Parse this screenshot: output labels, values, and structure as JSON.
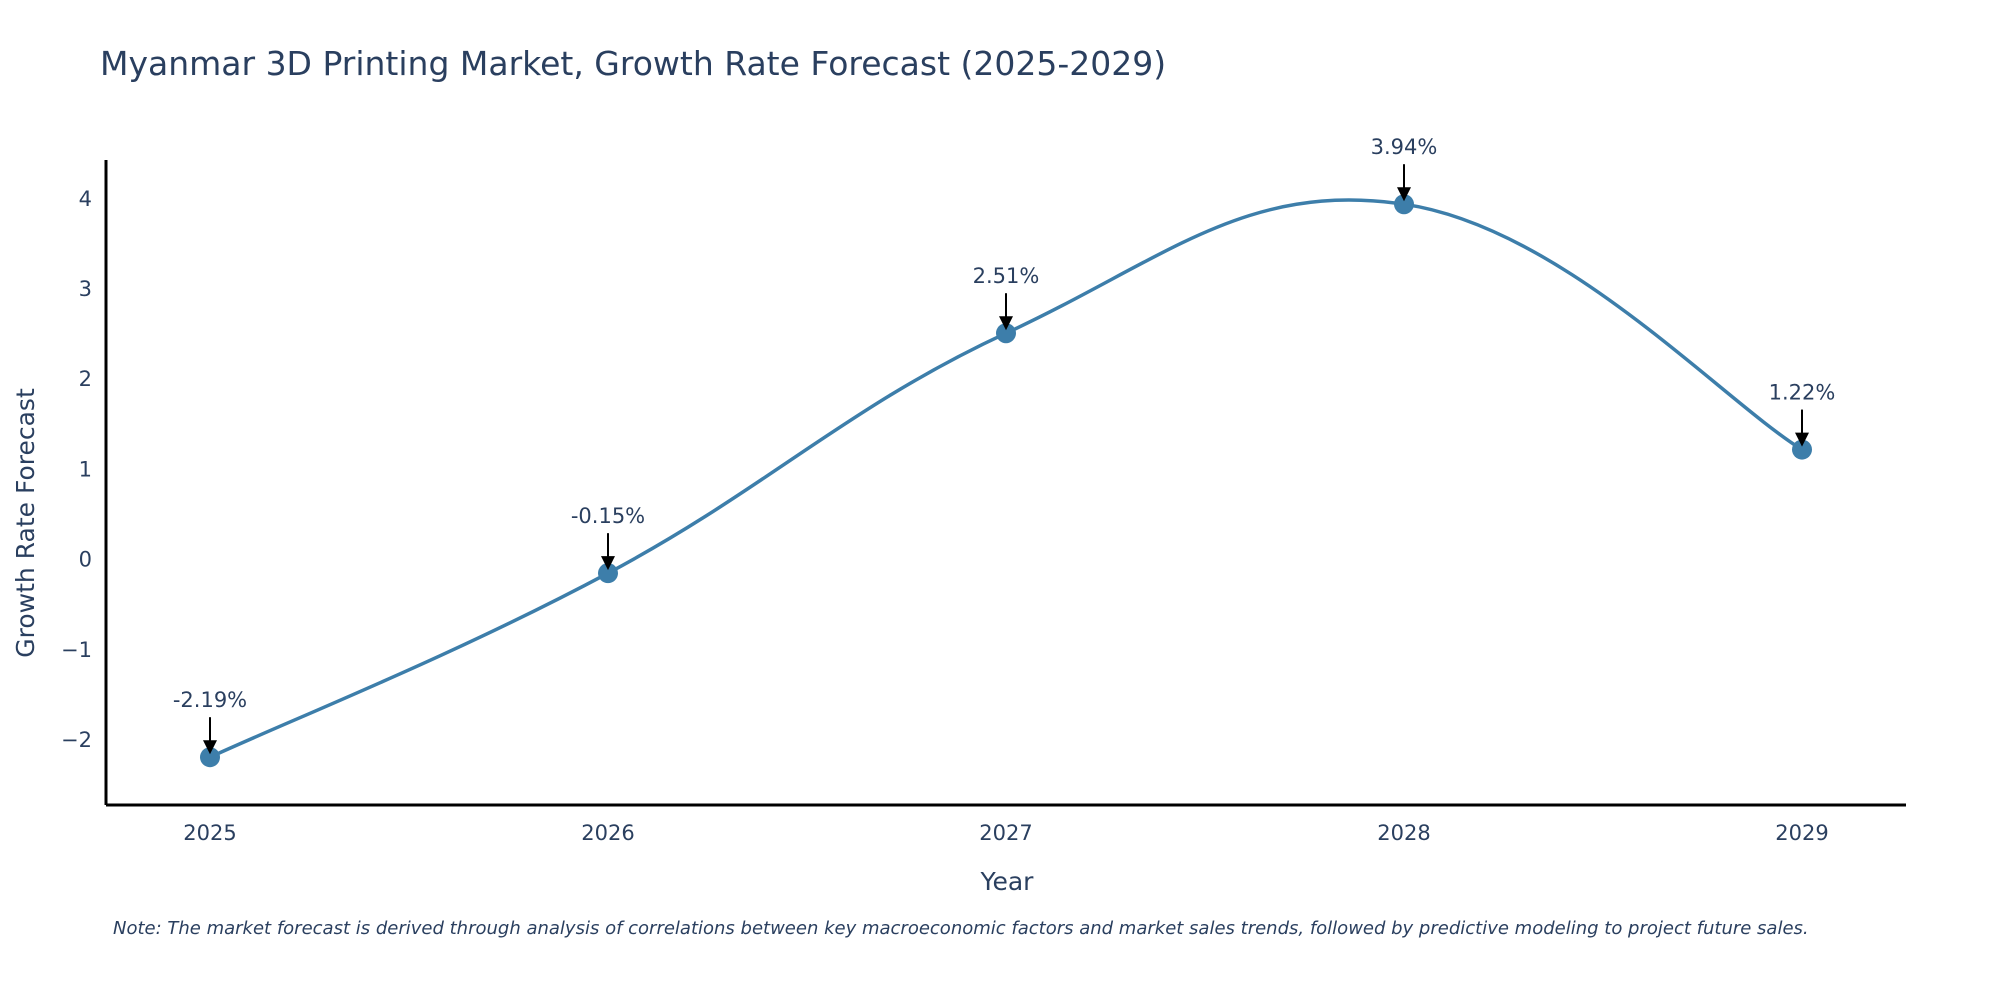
{
  "chart_data": {
    "type": "line",
    "title": "Myanmar 3D Printing Market, Growth Rate Forecast (2025-2029)",
    "xlabel": "Year",
    "ylabel": "Growth Rate Forecast",
    "categories": [
      "2025",
      "2026",
      "2027",
      "2028",
      "2029"
    ],
    "series": [
      {
        "name": "Growth Rate Forecast",
        "values": [
          -2.19,
          -0.15,
          2.51,
          3.94,
          1.22
        ],
        "color": "#3d7eaa"
      }
    ],
    "data_labels": [
      "-2.19%",
      "-0.15%",
      "2.51%",
      "3.94%",
      "1.22%"
    ],
    "y_ticks": [
      -2,
      -1,
      0,
      1,
      2,
      3,
      4
    ],
    "y_tick_labels": [
      "−2",
      "−1",
      "0",
      "1",
      "2",
      "3",
      "4"
    ],
    "ylim": [
      -2.72,
      4.43
    ],
    "grid": false,
    "legend": "none"
  },
  "note": "Note: The market forecast is derived through analysis of correlations between key macroeconomic factors and market sales trends, followed by predictive modeling to project future sales."
}
